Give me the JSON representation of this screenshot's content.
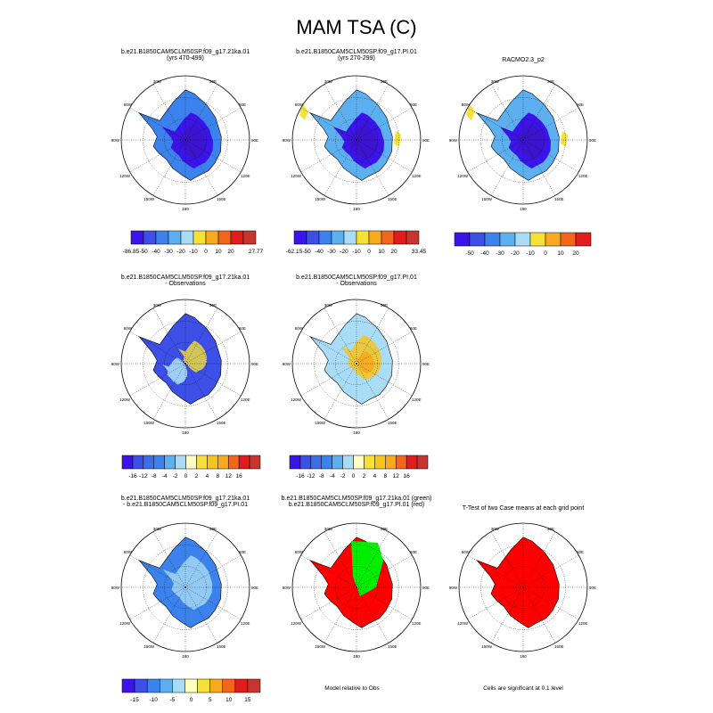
{
  "page": {
    "title": "MAM TSA (C)"
  },
  "lon_labels": [
    "30W",
    "30E",
    "60W",
    "60E",
    "90W",
    "90E",
    "120W",
    "120E",
    "150W",
    "150E",
    "180"
  ],
  "panels": [
    {
      "line1": "b.e21.B1850CAM5CLM50SP.f09_g17.21ka.01",
      "line2": "(yrs 470-499)",
      "map": "ice-21ka"
    },
    {
      "line1": "b.e21.B1850CAM5CLM50SP.f09_g17.PI.01",
      "line2": "(yrs 270-299)",
      "map": "ice-pi"
    },
    {
      "line1": "RACMO2.3_p2",
      "line2": "",
      "map": "obs"
    },
    {
      "line1": "b.e21.B1850CAM5CLM50SP.f09_g17.21ka.01",
      "line2": "- Observations",
      "map": "bias-21ka"
    },
    {
      "line1": "b.e21.B1850CAM5CLM50SP.f09_g17.PI.01",
      "line2": "- Observations",
      "map": "bias-pi"
    },
    {
      "line1": "",
      "line2": "",
      "map": "none"
    },
    {
      "line1": "b.e21.B1850CAM5CLM50SP.f09_g17.21ka.01",
      "line2": "- b.e21.B1850CAM5CLM50SP.f09_g17.PI.01",
      "map": "diff"
    },
    {
      "line1": "b.e21.B1850CAM5CLM50SP.f09_g17.21ka.01 (green)",
      "line2": "b.e21.B1850CAM5CLM50SP.f09_g17.PI.01 (red)",
      "map": "green-red"
    },
    {
      "line1": "T-Test of two Case means at each grid point",
      "line2": "",
      "map": "ttest"
    }
  ],
  "colorbars": [
    {
      "colors": [
        "#3a14e8",
        "#3c4fe6",
        "#3c82ec",
        "#5cb0f0",
        "#a9dcf6",
        "#f6e236",
        "#f7a91f",
        "#f2661c",
        "#e01c1c",
        "#c8352f"
      ],
      "labels": [
        "-86.85",
        "-50",
        "-40",
        "-30",
        "-20",
        "-10",
        "0",
        "10",
        "20",
        "27.77"
      ],
      "mode": "edges"
    },
    {
      "colors": [
        "#3a14e8",
        "#3c4fe6",
        "#3c82ec",
        "#5cb0f0",
        "#a9dcf6",
        "#f6e236",
        "#f7a91f",
        "#f2661c",
        "#e01c1c",
        "#c8352f"
      ],
      "labels": [
        "-62.15",
        "-50",
        "-40",
        "-30",
        "-20",
        "-10",
        "0",
        "10",
        "20",
        "33.45"
      ],
      "mode": "edges"
    },
    {
      "colors": [
        "#3a14e8",
        "#3c4fe6",
        "#3c82ec",
        "#5cb0f0",
        "#a9dcf6",
        "#f6e236",
        "#f7a91f",
        "#f2661c",
        "#e01c1c"
      ],
      "labels": [
        "-50",
        "-40",
        "-30",
        "-20",
        "-10",
        "0",
        "10",
        "20"
      ],
      "mode": "inner"
    },
    {
      "colors": [
        "#3a14e8",
        "#3c4fe6",
        "#3c6fe6",
        "#3c82ec",
        "#5cb0f0",
        "#a9dcf6",
        "#ffffbf",
        "#f6e236",
        "#f7c41f",
        "#f7a91f",
        "#f2661c",
        "#e01c1c",
        "#c8352f"
      ],
      "labels": [
        "-16",
        "-12",
        "-8",
        "-4",
        "-2",
        "0",
        "2",
        "4",
        "8",
        "12",
        "16"
      ],
      "mode": "inner"
    },
    {
      "colors": [
        "#3a14e8",
        "#3c4fe6",
        "#3c6fe6",
        "#3c82ec",
        "#5cb0f0",
        "#a9dcf6",
        "#ffffbf",
        "#f6e236",
        "#f7c41f",
        "#f7a91f",
        "#f2661c",
        "#e01c1c",
        "#c8352f"
      ],
      "labels": [
        "-16",
        "-12",
        "-8",
        "-4",
        "-2",
        "0",
        "2",
        "4",
        "8",
        "12",
        "16"
      ],
      "mode": "inner"
    },
    {
      "colors": [
        "#3a14e8",
        "#3c4fe6",
        "#3c82ec",
        "#5cb0f0",
        "#a9dcf6",
        "#ffffbf",
        "#f6e236",
        "#f7a91f",
        "#f2661c",
        "#e01c1c",
        "#c8352f"
      ],
      "labels": [
        "-15",
        "-10",
        "-5",
        "0",
        "5",
        "10",
        "15"
      ],
      "mode": "spread"
    }
  ],
  "notes": [
    "Model relative to Obs",
    "Cells are significant at 0.1 level"
  ]
}
